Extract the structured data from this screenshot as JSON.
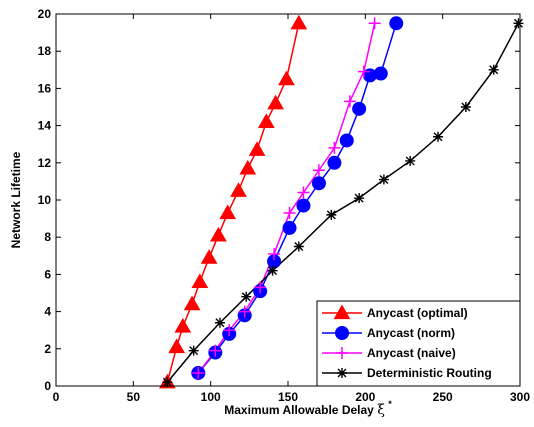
{
  "chart_data": {
    "type": "line",
    "xlabel": "Maximum Allowable Delay",
    "xlabel_symbol": "ξ",
    "xlabel_superscript": "*",
    "ylabel": "Network Lifetime",
    "xlim": [
      0,
      300
    ],
    "ylim": [
      0,
      20
    ],
    "xticks": [
      0,
      50,
      100,
      150,
      200,
      250,
      300
    ],
    "yticks": [
      0,
      2,
      4,
      6,
      8,
      10,
      12,
      14,
      16,
      18,
      20
    ],
    "grid": false,
    "legend_position": "bottom-right",
    "series": [
      {
        "name": "Anycast (optimal)",
        "color": "#ff0000",
        "marker": "triangle",
        "x": [
          72,
          78,
          82,
          88,
          93,
          99,
          105,
          111,
          118,
          124,
          130,
          136,
          142,
          149,
          157
        ],
        "y": [
          0.2,
          2.1,
          3.2,
          4.4,
          5.6,
          6.9,
          8.1,
          9.3,
          10.5,
          11.7,
          12.7,
          14.2,
          15.2,
          16.5,
          19.5
        ]
      },
      {
        "name": "Anycast (norm)",
        "color": "#0000ff",
        "marker": "circle",
        "x": [
          92,
          103,
          112,
          122,
          132,
          141,
          151,
          160,
          170,
          180,
          188,
          196,
          203,
          210,
          220
        ],
        "y": [
          0.7,
          1.8,
          2.8,
          3.8,
          5.1,
          6.7,
          8.5,
          9.7,
          10.9,
          12.0,
          13.2,
          14.9,
          16.7,
          16.8,
          19.5
        ]
      },
      {
        "name": "Anycast (naive)",
        "color": "#ff00ff",
        "marker": "plus",
        "x": [
          92,
          103,
          112,
          122,
          132,
          141,
          151,
          160,
          170,
          180,
          190,
          199,
          206
        ],
        "y": [
          0.7,
          1.9,
          3.0,
          4.0,
          5.3,
          7.1,
          9.3,
          10.4,
          11.6,
          12.8,
          15.3,
          16.9,
          19.5
        ]
      },
      {
        "name": "Deterministic Routing",
        "color": "#000000",
        "marker": "asterisk",
        "x": [
          72,
          89,
          106,
          123,
          140,
          157,
          178,
          196,
          212,
          229,
          247,
          265,
          283,
          299
        ],
        "y": [
          0.2,
          1.9,
          3.4,
          4.8,
          6.2,
          7.5,
          9.2,
          10.1,
          11.1,
          12.1,
          13.4,
          15.0,
          17.0,
          19.5
        ]
      }
    ]
  }
}
